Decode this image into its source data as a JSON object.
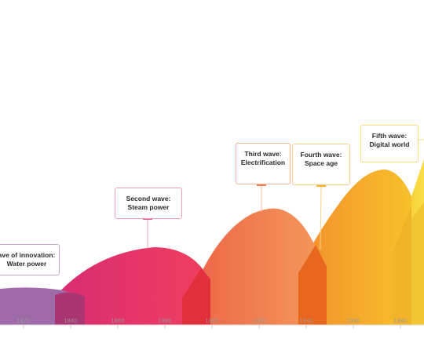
{
  "waves": [
    {
      "id": "first",
      "line1": "ave of innovation:",
      "line2": "Water power",
      "color_main": "#9d6aa5",
      "color_shade": "#7c3f86"
    },
    {
      "id": "second",
      "line1": "Second wave:",
      "line2": "Steam power",
      "color_main": "#e8336e",
      "color_shade": "#c01f57"
    },
    {
      "id": "third",
      "line1": "Third wave:",
      "line2": "Electrification",
      "color_main": "#ee7e53",
      "color_shade": "#e34031"
    },
    {
      "id": "fourth",
      "line1": "Fourth wave:",
      "line2": "Space age",
      "color_main": "#f6ae2d",
      "color_shade": "#ea6a25"
    },
    {
      "id": "fifth",
      "line1": "Fifth wave:",
      "line2": "Digital world",
      "color_main": "#f3d23a",
      "color_shade": "#e7b723"
    }
  ],
  "axis": {
    "ticks": [
      "1820",
      "1840",
      "1860",
      "1880",
      "1900",
      "1920",
      "1940",
      "1960",
      "1980"
    ]
  }
}
